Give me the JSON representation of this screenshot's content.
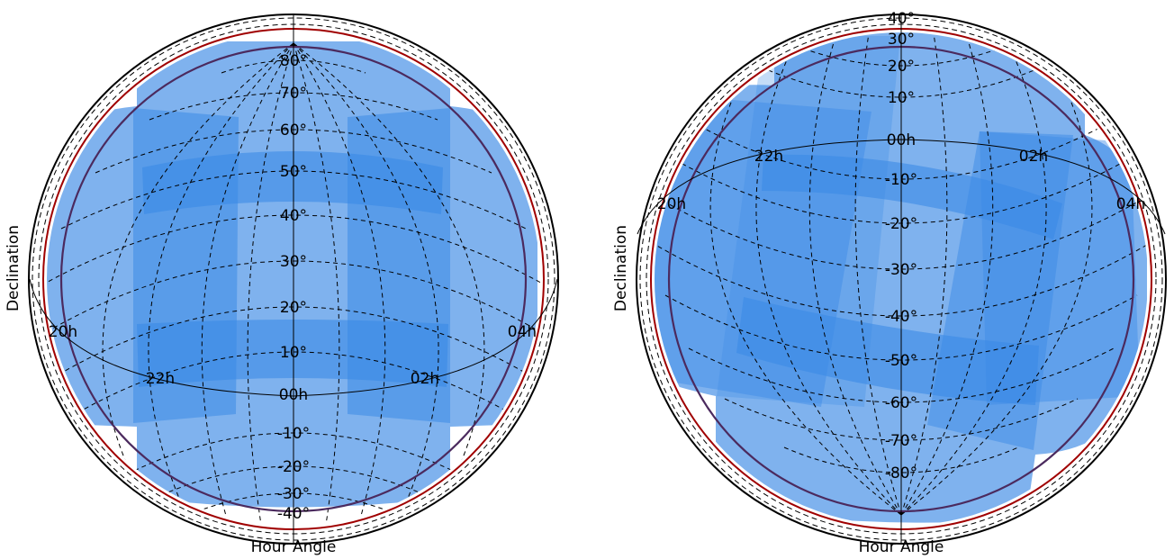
{
  "chart_data": [
    {
      "type": "area",
      "projection": "orthographic",
      "xlabel": "Hour Angle",
      "ylabel": "Declination",
      "dec_labels": [
        "80°",
        "70°",
        "60°",
        "50°",
        "40°",
        "30°",
        "20°",
        "10°",
        "00h",
        "-10°",
        "-20°",
        "-30°",
        "-40°"
      ],
      "ra_labels": [
        "20h",
        "22h",
        "02h",
        "04h"
      ],
      "fill_color": "#1f77e4",
      "circle_colors": [
        "#000000",
        "#8b0000",
        "#4b2a5e"
      ],
      "pointings": [
        {
          "ra_hours": 22.5,
          "dec_deg": 50
        },
        {
          "ra_hours": 1.5,
          "dec_deg": 50
        },
        {
          "ra_hours": 22.5,
          "dec_deg": 10
        },
        {
          "ra_hours": 1.5,
          "dec_deg": 10
        }
      ]
    },
    {
      "type": "area",
      "projection": "orthographic",
      "xlabel": "Hour Angle",
      "ylabel": "Declination",
      "dec_labels": [
        "40°",
        "30°",
        "20°",
        "10°",
        "00h",
        "-10°",
        "-20°",
        "-30°",
        "-40°",
        "-50°",
        "-60°",
        "-70°",
        "-80°"
      ],
      "ra_labels": [
        "20h",
        "22h",
        "02h",
        "04h"
      ],
      "fill_color": "#1f77e4",
      "circle_colors": [
        "#000000",
        "#8b0000",
        "#4b2a5e"
      ],
      "pointings": [
        {
          "ra_hours": 22.5,
          "dec_deg": -10
        },
        {
          "ra_hours": 1.5,
          "dec_deg": -10
        },
        {
          "ra_hours": 22.5,
          "dec_deg": -50
        },
        {
          "ra_hours": 1.5,
          "dec_deg": -50
        }
      ]
    }
  ]
}
